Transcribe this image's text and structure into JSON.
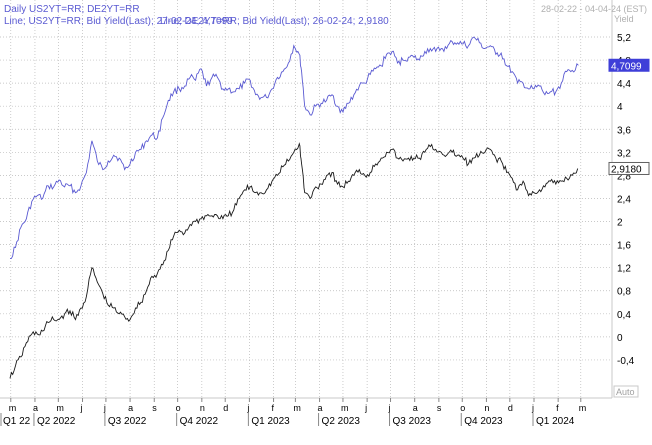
{
  "header": {
    "title": "Daily US2YT=RR; DE2YT=RR",
    "legend_us": "Line; US2YT=RR; Bid Yield(Last); 27-02-24; 4,7099",
    "legend_de": "Line; DE2YT=RR; Bid Yield(Last); 26-02-24; 2,9180",
    "date_range": "28-02-22 - 04-04-24 (EST)"
  },
  "axis": {
    "y_unit": "Yield",
    "auto_label": "Auto"
  },
  "colors": {
    "us_line": "#5a5ad2",
    "de_line": "#1a1a1a",
    "us_badge": "#3f3fd8",
    "header_text": "#5a5ad2",
    "axis_text": "#000000",
    "grid": "#b8b8b8"
  },
  "chart_data": {
    "type": "line",
    "title": "Daily US2YT=RR; DE2YT=RR",
    "xlabel": "",
    "ylabel": "Yield",
    "x_range": [
      "2022-02-28",
      "2024-04-04"
    ],
    "ylim": [
      -0.8,
      5.4
    ],
    "y_ticks": [
      "-0,4",
      "0",
      "0,4",
      "0,8",
      "1,2",
      "1,6",
      "2",
      "2,4",
      "2,8",
      "3,2",
      "3,6",
      "4",
      "4,4",
      "4,8",
      "5,2"
    ],
    "y_tick_values": [
      -0.4,
      0,
      0.4,
      0.8,
      1.2,
      1.6,
      2,
      2.4,
      2.8,
      3.2,
      3.6,
      4,
      4.4,
      4.8,
      5.2
    ],
    "month_labels": [
      "m",
      "a",
      "m",
      "j",
      "j",
      "a",
      "s",
      "o",
      "n",
      "d",
      "j",
      "f",
      "m",
      "a",
      "m",
      "j",
      "j",
      "a",
      "s",
      "o",
      "n",
      "d",
      "j",
      "f",
      "m"
    ],
    "month_dates": [
      "2022-03-01",
      "2022-04-01",
      "2022-05-01",
      "2022-06-01",
      "2022-07-01",
      "2022-08-01",
      "2022-09-01",
      "2022-10-01",
      "2022-11-01",
      "2022-12-01",
      "2023-01-01",
      "2023-02-01",
      "2023-03-01",
      "2023-04-01",
      "2023-05-01",
      "2023-06-01",
      "2023-07-01",
      "2023-08-01",
      "2023-09-01",
      "2023-10-01",
      "2023-11-01",
      "2023-12-01",
      "2024-01-01",
      "2024-02-01",
      "2024-03-01"
    ],
    "quarter_labels": [
      "Q1 22",
      "Q2 2022",
      "Q3 2022",
      "Q4 2022",
      "Q1 2023",
      "Q2 2023",
      "Q3 2023",
      "Q4 2023",
      "Q1 2024"
    ],
    "quarter_dates": [
      "2022-02-28",
      "2022-04-01",
      "2022-07-01",
      "2022-10-01",
      "2023-01-01",
      "2023-04-01",
      "2023-07-01",
      "2023-10-01",
      "2024-01-01"
    ],
    "grid": true,
    "legend": "top-left",
    "series": [
      {
        "name": "US2YT=RR",
        "last_label": "4,7099",
        "x": [
          "2022-02-28",
          "2022-03-07",
          "2022-03-14",
          "2022-03-21",
          "2022-03-28",
          "2022-04-04",
          "2022-04-11",
          "2022-04-18",
          "2022-04-25",
          "2022-05-02",
          "2022-05-09",
          "2022-05-16",
          "2022-05-23",
          "2022-05-30",
          "2022-06-06",
          "2022-06-13",
          "2022-06-20",
          "2022-06-27",
          "2022-07-04",
          "2022-07-11",
          "2022-07-18",
          "2022-07-25",
          "2022-08-01",
          "2022-08-08",
          "2022-08-15",
          "2022-08-22",
          "2022-08-29",
          "2022-09-05",
          "2022-09-12",
          "2022-09-19",
          "2022-09-26",
          "2022-10-03",
          "2022-10-10",
          "2022-10-17",
          "2022-10-24",
          "2022-10-31",
          "2022-11-07",
          "2022-11-14",
          "2022-11-21",
          "2022-11-28",
          "2022-12-05",
          "2022-12-12",
          "2022-12-19",
          "2022-12-26",
          "2023-01-02",
          "2023-01-09",
          "2023-01-16",
          "2023-01-23",
          "2023-01-30",
          "2023-02-06",
          "2023-02-13",
          "2023-02-20",
          "2023-02-27",
          "2023-03-06",
          "2023-03-09",
          "2023-03-13",
          "2023-03-20",
          "2023-03-27",
          "2023-04-03",
          "2023-04-10",
          "2023-04-17",
          "2023-04-24",
          "2023-05-01",
          "2023-05-08",
          "2023-05-15",
          "2023-05-22",
          "2023-05-29",
          "2023-06-05",
          "2023-06-12",
          "2023-06-19",
          "2023-06-26",
          "2023-07-03",
          "2023-07-10",
          "2023-07-17",
          "2023-07-24",
          "2023-07-31",
          "2023-08-07",
          "2023-08-14",
          "2023-08-21",
          "2023-08-28",
          "2023-09-04",
          "2023-09-11",
          "2023-09-18",
          "2023-09-25",
          "2023-10-02",
          "2023-10-09",
          "2023-10-16",
          "2023-10-23",
          "2023-10-30",
          "2023-11-06",
          "2023-11-13",
          "2023-11-20",
          "2023-11-27",
          "2023-12-04",
          "2023-12-11",
          "2023-12-18",
          "2023-12-25",
          "2024-01-01",
          "2024-01-08",
          "2024-01-15",
          "2024-01-22",
          "2024-01-29",
          "2024-02-05",
          "2024-02-12",
          "2024-02-19",
          "2024-02-27"
        ],
        "values": [
          1.36,
          1.55,
          1.9,
          2.05,
          2.35,
          2.45,
          2.4,
          2.62,
          2.6,
          2.72,
          2.6,
          2.62,
          2.5,
          2.62,
          2.85,
          3.4,
          3.05,
          2.9,
          3.05,
          3.15,
          3.1,
          2.9,
          3.0,
          3.2,
          3.25,
          3.4,
          3.5,
          3.45,
          3.8,
          4.1,
          4.25,
          4.3,
          4.35,
          4.5,
          4.45,
          4.65,
          4.35,
          4.5,
          4.5,
          4.3,
          4.3,
          4.25,
          4.3,
          4.4,
          4.45,
          4.2,
          4.15,
          4.15,
          4.3,
          4.5,
          4.6,
          4.75,
          5.05,
          4.9,
          4.6,
          4.0,
          3.85,
          4.0,
          4.05,
          4.1,
          4.2,
          4.0,
          3.9,
          4.05,
          4.2,
          4.35,
          4.4,
          4.55,
          4.65,
          4.7,
          4.9,
          4.95,
          4.75,
          4.8,
          4.85,
          4.85,
          4.8,
          4.95,
          5.0,
          4.95,
          5.0,
          5.0,
          5.12,
          5.1,
          5.08,
          5.05,
          5.2,
          5.1,
          5.0,
          5.05,
          4.9,
          4.92,
          4.7,
          4.6,
          4.4,
          4.4,
          4.3,
          4.3,
          4.35,
          4.2,
          4.25,
          4.25,
          4.4,
          4.6,
          4.62,
          4.71
        ]
      },
      {
        "name": "DE2YT=RR",
        "last_label": "2,9180",
        "x": [
          "2022-02-28",
          "2022-03-07",
          "2022-03-14",
          "2022-03-21",
          "2022-03-28",
          "2022-04-04",
          "2022-04-11",
          "2022-04-18",
          "2022-04-25",
          "2022-05-02",
          "2022-05-09",
          "2022-05-16",
          "2022-05-23",
          "2022-05-30",
          "2022-06-06",
          "2022-06-13",
          "2022-06-20",
          "2022-06-27",
          "2022-07-04",
          "2022-07-11",
          "2022-07-18",
          "2022-07-25",
          "2022-08-01",
          "2022-08-08",
          "2022-08-15",
          "2022-08-22",
          "2022-08-29",
          "2022-09-05",
          "2022-09-12",
          "2022-09-19",
          "2022-09-26",
          "2022-10-03",
          "2022-10-10",
          "2022-10-17",
          "2022-10-24",
          "2022-10-31",
          "2022-11-07",
          "2022-11-14",
          "2022-11-21",
          "2022-11-28",
          "2022-12-05",
          "2022-12-12",
          "2022-12-19",
          "2022-12-26",
          "2023-01-02",
          "2023-01-09",
          "2023-01-16",
          "2023-01-23",
          "2023-01-30",
          "2023-02-06",
          "2023-02-13",
          "2023-02-20",
          "2023-02-27",
          "2023-03-06",
          "2023-03-09",
          "2023-03-13",
          "2023-03-20",
          "2023-03-27",
          "2023-04-03",
          "2023-04-10",
          "2023-04-17",
          "2023-04-24",
          "2023-05-01",
          "2023-05-08",
          "2023-05-15",
          "2023-05-22",
          "2023-05-29",
          "2023-06-05",
          "2023-06-12",
          "2023-06-19",
          "2023-06-26",
          "2023-07-03",
          "2023-07-10",
          "2023-07-17",
          "2023-07-24",
          "2023-07-31",
          "2023-08-07",
          "2023-08-14",
          "2023-08-21",
          "2023-08-28",
          "2023-09-04",
          "2023-09-11",
          "2023-09-18",
          "2023-09-25",
          "2023-10-02",
          "2023-10-09",
          "2023-10-16",
          "2023-10-23",
          "2023-10-30",
          "2023-11-06",
          "2023-11-13",
          "2023-11-20",
          "2023-11-27",
          "2023-12-04",
          "2023-12-11",
          "2023-12-18",
          "2023-12-25",
          "2024-01-01",
          "2024-01-08",
          "2024-01-15",
          "2024-01-22",
          "2024-01-29",
          "2024-02-05",
          "2024-02-12",
          "2024-02-19",
          "2024-02-26"
        ],
        "values": [
          -0.72,
          -0.5,
          -0.35,
          -0.1,
          0.05,
          0.05,
          0.1,
          0.25,
          0.3,
          0.3,
          0.4,
          0.45,
          0.3,
          0.5,
          0.7,
          1.2,
          0.95,
          0.75,
          0.55,
          0.5,
          0.4,
          0.35,
          0.3,
          0.5,
          0.6,
          0.8,
          1.05,
          1.1,
          1.25,
          1.5,
          1.75,
          1.85,
          1.8,
          1.95,
          2.0,
          2.05,
          2.1,
          2.1,
          2.1,
          2.05,
          2.1,
          2.2,
          2.4,
          2.55,
          2.6,
          2.5,
          2.5,
          2.55,
          2.7,
          2.8,
          2.95,
          3.05,
          3.2,
          3.35,
          3.0,
          2.5,
          2.4,
          2.6,
          2.65,
          2.8,
          2.85,
          2.65,
          2.6,
          2.7,
          2.8,
          2.9,
          2.8,
          2.85,
          3.0,
          3.1,
          3.2,
          3.25,
          3.1,
          3.05,
          3.1,
          3.1,
          3.1,
          3.2,
          3.3,
          3.25,
          3.2,
          3.15,
          3.2,
          3.15,
          3.1,
          3.0,
          3.1,
          3.15,
          3.2,
          3.25,
          3.1,
          3.05,
          2.85,
          2.75,
          2.55,
          2.7,
          2.45,
          2.5,
          2.55,
          2.6,
          2.7,
          2.65,
          2.7,
          2.75,
          2.8,
          2.92
        ]
      }
    ]
  }
}
